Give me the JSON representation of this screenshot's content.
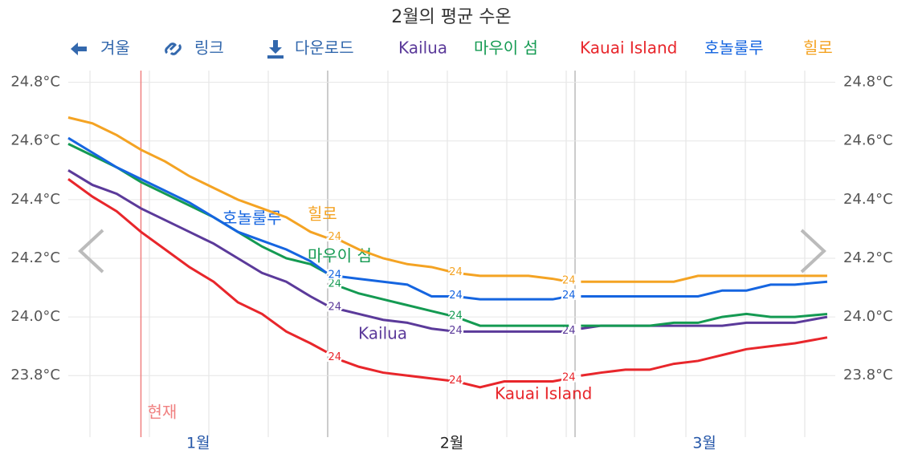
{
  "toolbar": [
    "겨울",
    "링크",
    "다운로드"
  ],
  "chart_data": {
    "type": "line",
    "title": "2월의 평균 수온",
    "x": [
      0,
      3,
      6,
      9,
      12,
      15,
      18,
      21,
      24,
      27,
      30,
      32,
      32.5,
      33,
      36,
      39,
      42,
      45,
      48,
      51,
      54,
      57,
      60,
      62,
      63,
      63.5,
      66,
      69,
      72,
      75,
      78,
      81,
      84,
      87,
      90,
      94
    ],
    "xlim": [
      0,
      95
    ],
    "xticks": [
      {
        "value": 16.1,
        "label": "1월"
      },
      {
        "value": 47.5,
        "label": "2월"
      },
      {
        "value": 78.8,
        "label": "3월"
      }
    ],
    "ylim": [
      23.59,
      24.84
    ],
    "yticks": [
      {
        "value": 23.8,
        "label": "23.8°C"
      },
      {
        "value": 24.0,
        "label": "24.0°C"
      },
      {
        "value": 24.2,
        "label": "24.2°C"
      },
      {
        "value": 24.4,
        "label": "24.4°C"
      },
      {
        "value": 24.6,
        "label": "24.6°C"
      },
      {
        "value": 24.8,
        "label": "24.8°C"
      }
    ],
    "grid": true,
    "annotation": {
      "text": "현재",
      "x": 9,
      "color": "#f08080"
    },
    "series": [
      {
        "name": "Kailua",
        "color": "#5b3a9a",
        "values": [
          24.5,
          24.45,
          24.42,
          24.37,
          24.33,
          24.29,
          24.25,
          24.2,
          24.15,
          24.12,
          24.07,
          24.04,
          null,
          24.03,
          24.01,
          23.99,
          23.98,
          23.96,
          23.95,
          23.95,
          23.95,
          23.95,
          23.95,
          23.95,
          null,
          23.96,
          23.97,
          23.97,
          23.97,
          23.97,
          23.97,
          23.97,
          23.98,
          23.98,
          23.98,
          24.0
        ],
        "value_labels": [
          null,
          null,
          null,
          null,
          null,
          null,
          null,
          null,
          null,
          null,
          null,
          null,
          null,
          "24",
          null,
          null,
          null,
          null,
          "24",
          null,
          null,
          null,
          null,
          "24",
          null,
          null,
          null,
          null,
          null,
          null,
          null,
          null,
          null,
          null,
          null,
          null
        ]
      },
      {
        "name": "마우이 섬",
        "color": "#149a52",
        "values": [
          24.59,
          24.55,
          24.51,
          24.46,
          24.42,
          24.38,
          24.34,
          24.29,
          24.24,
          24.2,
          24.18,
          24.15,
          null,
          24.11,
          24.08,
          24.06,
          24.04,
          24.02,
          24.0,
          23.97,
          23.97,
          23.97,
          23.97,
          23.97,
          null,
          23.97,
          23.97,
          23.97,
          23.97,
          23.98,
          23.98,
          24.0,
          24.01,
          24.0,
          24.0,
          24.01
        ],
        "value_labels": [
          null,
          null,
          null,
          null,
          null,
          null,
          null,
          null,
          null,
          null,
          null,
          null,
          null,
          "24",
          null,
          null,
          null,
          null,
          "24",
          null,
          null,
          null,
          null,
          null,
          null,
          null,
          null,
          null,
          null,
          null,
          null,
          null,
          null,
          null,
          null,
          null
        ]
      },
      {
        "name": "Kauai Island",
        "color": "#e8262b",
        "values": [
          24.47,
          24.41,
          24.36,
          24.29,
          24.23,
          24.17,
          24.12,
          24.05,
          24.01,
          23.95,
          23.91,
          23.88,
          null,
          23.86,
          23.83,
          23.81,
          23.8,
          23.79,
          23.78,
          23.76,
          23.78,
          23.78,
          23.78,
          23.79,
          null,
          23.8,
          23.81,
          23.82,
          23.82,
          23.84,
          23.85,
          23.87,
          23.89,
          23.9,
          23.91,
          23.93
        ],
        "value_labels": [
          null,
          null,
          null,
          null,
          null,
          null,
          null,
          null,
          null,
          null,
          null,
          null,
          null,
          "24",
          null,
          null,
          null,
          null,
          "24",
          null,
          null,
          null,
          null,
          "24",
          null,
          null,
          null,
          null,
          null,
          null,
          null,
          null,
          null,
          null,
          null,
          null
        ]
      },
      {
        "name": "호놀룰루",
        "color": "#1565e0",
        "values": [
          24.61,
          24.56,
          24.51,
          24.47,
          24.43,
          24.39,
          24.34,
          24.29,
          24.26,
          24.23,
          24.19,
          24.15,
          null,
          24.14,
          24.13,
          24.12,
          24.11,
          24.07,
          24.07,
          24.06,
          24.06,
          24.06,
          24.06,
          24.07,
          null,
          24.07,
          24.07,
          24.07,
          24.07,
          24.07,
          24.07,
          24.09,
          24.09,
          24.11,
          24.11,
          24.12
        ],
        "value_labels": [
          null,
          null,
          null,
          null,
          null,
          null,
          null,
          null,
          null,
          null,
          null,
          null,
          null,
          "24",
          null,
          null,
          null,
          null,
          "24",
          null,
          null,
          null,
          null,
          "24",
          null,
          null,
          null,
          null,
          null,
          null,
          null,
          null,
          null,
          null,
          null,
          null
        ]
      },
      {
        "name": "힐로",
        "color": "#f4a323",
        "values": [
          24.68,
          24.66,
          24.62,
          24.57,
          24.53,
          24.48,
          24.44,
          24.4,
          24.37,
          24.34,
          24.29,
          24.27,
          null,
          24.27,
          24.23,
          24.2,
          24.18,
          24.17,
          24.15,
          24.14,
          24.14,
          24.14,
          24.13,
          24.12,
          null,
          24.12,
          24.12,
          24.12,
          24.12,
          24.12,
          24.14,
          24.14,
          24.14,
          24.14,
          24.14,
          24.14
        ],
        "value_labels": [
          null,
          null,
          null,
          null,
          null,
          null,
          null,
          null,
          null,
          null,
          null,
          null,
          null,
          "24",
          null,
          null,
          null,
          null,
          "24",
          null,
          null,
          null,
          null,
          "24",
          null,
          null,
          null,
          null,
          null,
          null,
          null,
          null,
          null,
          null,
          null,
          null
        ]
      }
    ]
  }
}
